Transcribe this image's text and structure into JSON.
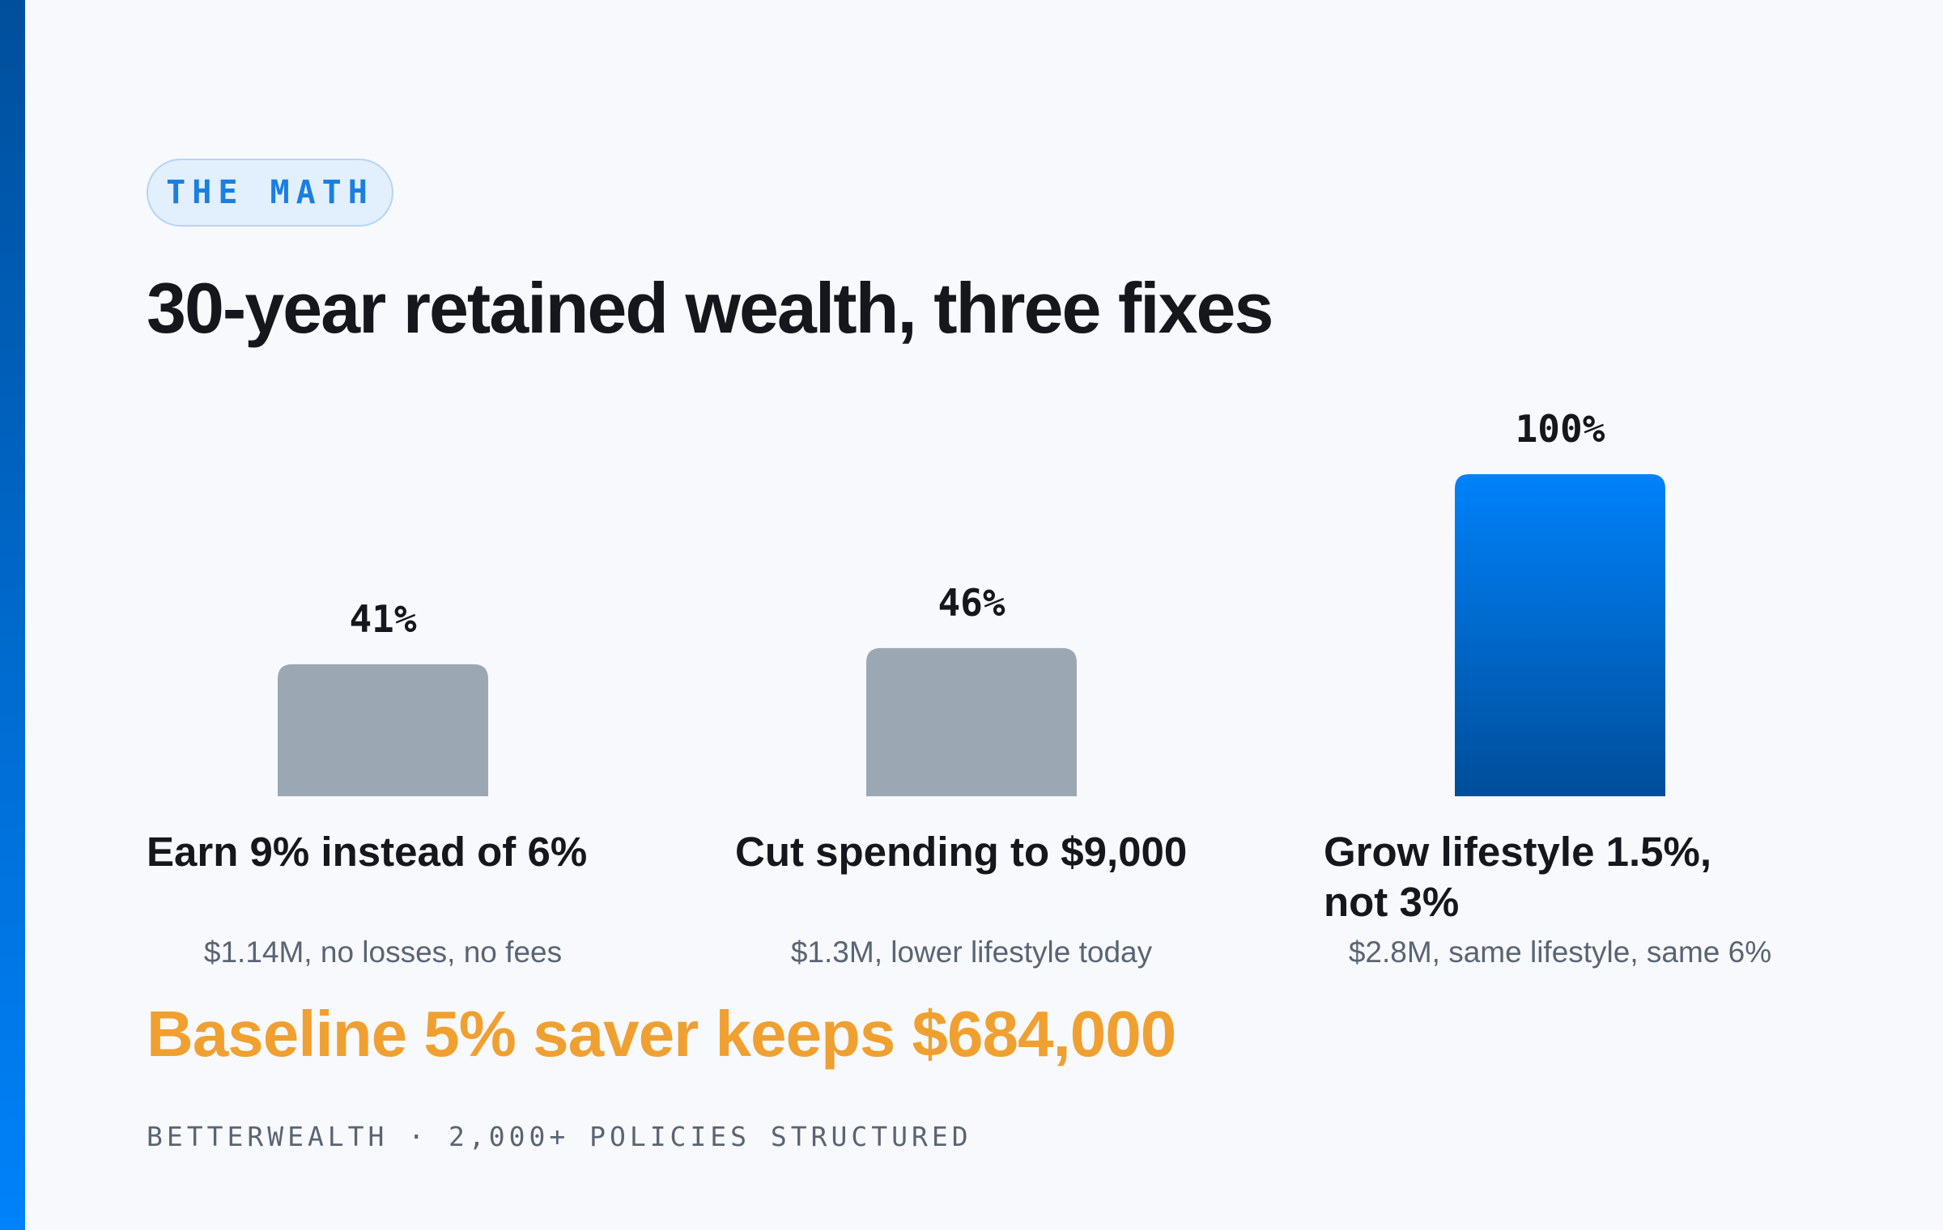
{
  "chart_data": {
    "type": "bar",
    "tag": "THE MATH",
    "title": "30-year retained wealth, three fixes",
    "categories": [
      "Earn 9% instead of 6%",
      "Cut spending to $9,000",
      "Grow lifestyle 1.5%, not 3%"
    ],
    "sublabels": [
      "$1.14M, no losses, no fees",
      "$1.3M, lower lifestyle today",
      "$2.8M, same lifestyle, same 6%"
    ],
    "values": [
      41,
      46,
      100
    ],
    "value_labels": [
      "41%",
      "46%",
      "100%"
    ],
    "colors": [
      [
        "#9ba8b4",
        "#9ba8b4"
      ],
      [
        "#9ba8b4",
        "#9ba8b4"
      ],
      [
        "#0082fa",
        "#004e99"
      ]
    ],
    "annotation": "Baseline 5% saver keeps $684,000",
    "footer": "BETTERWEALTH · 2,000+ POLICIES STRUCTURED"
  }
}
